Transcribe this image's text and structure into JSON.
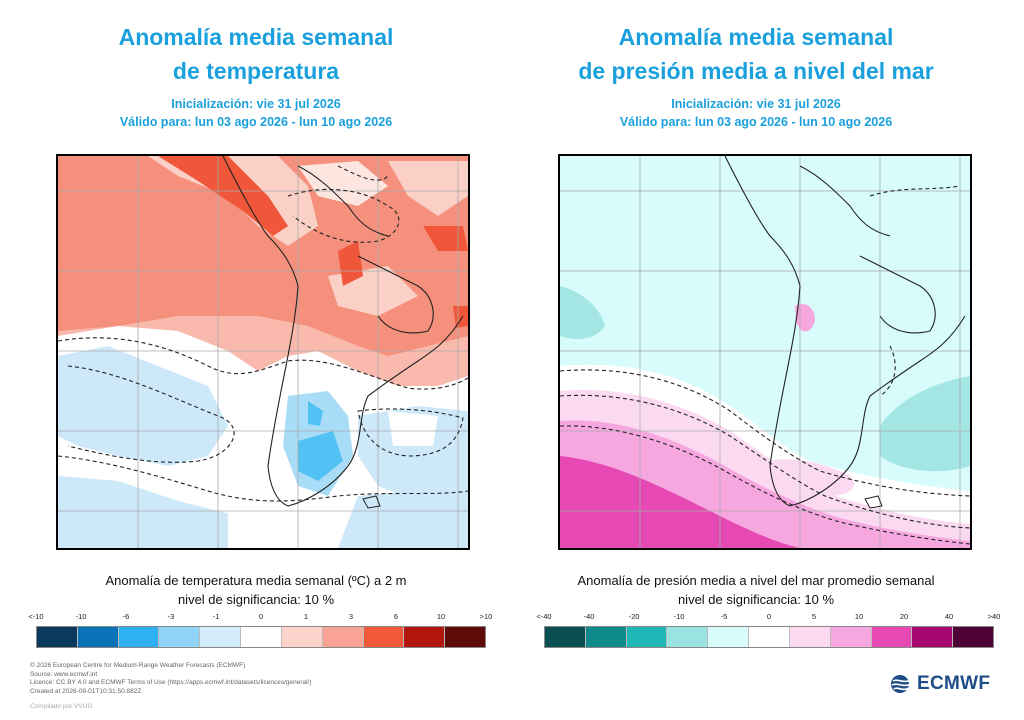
{
  "left_panel": {
    "title_line1": "Anomalía media semanal",
    "title_line2": "de temperatura",
    "init": "Inicialización: vie 31 jul 2026",
    "valid": "Válido para: lun 03 ago 2026 - lun 10 ago 2026",
    "caption_line1": "Anomalía de temperatura media semanal (ºC) a 2 m",
    "caption_line2": "nivel de significancia: 10 %",
    "legend_ticks": [
      "<-10",
      "-10",
      "-6",
      "-3",
      "-1",
      "0",
      "1",
      "3",
      "6",
      "10",
      ">10"
    ],
    "legend_colors": [
      "#0b3a5c",
      "#0a73b8",
      "#2fb0f0",
      "#8fd3f7",
      "#d3edfb",
      "#ffffff",
      "#fcd2cb",
      "#f8a393",
      "#f2593a",
      "#b2170d",
      "#5e0c07"
    ]
  },
  "right_panel": {
    "title_line1": "Anomalía media semanal",
    "title_line2": "de presión media a nivel del mar",
    "init": "Inicialización: vie 31 jul 2026",
    "valid": "Válido para: lun 03 ago 2026 - lun 10 ago 2026",
    "caption_line1": "Anomalía de presión media a nivel del mar promedio semanal",
    "caption_line2": "nivel de significancia: 10 %",
    "legend_ticks": [
      "<-40",
      "-40",
      "-20",
      "-10",
      "-5",
      "0",
      "5",
      "10",
      "20",
      "40",
      ">40"
    ],
    "legend_colors": [
      "#0a4f52",
      "#0f8a8a",
      "#1fb7b5",
      "#9ae3e1",
      "#d8fbfb",
      "#ffffff",
      "#fbd9f1",
      "#f7a7df",
      "#e649b4",
      "#a6076f",
      "#4d0336"
    ]
  },
  "footer": {
    "line1": "© 2026 European Centre for Medium-Range Weather Forecasts (ECMWF)",
    "line2": "Source: www.ecmwf.int",
    "line3": "Licence: CC BY 4.0 and ECMWF Terms of Use (https://apps.ecmwf.int/datasets/licences/general/)",
    "line4": "Created at 2026-08-01T10:31:50.882Z",
    "credit": "Compilado por VVUG"
  },
  "logo": {
    "text": "ECMWF",
    "color": "#1f4d86"
  }
}
